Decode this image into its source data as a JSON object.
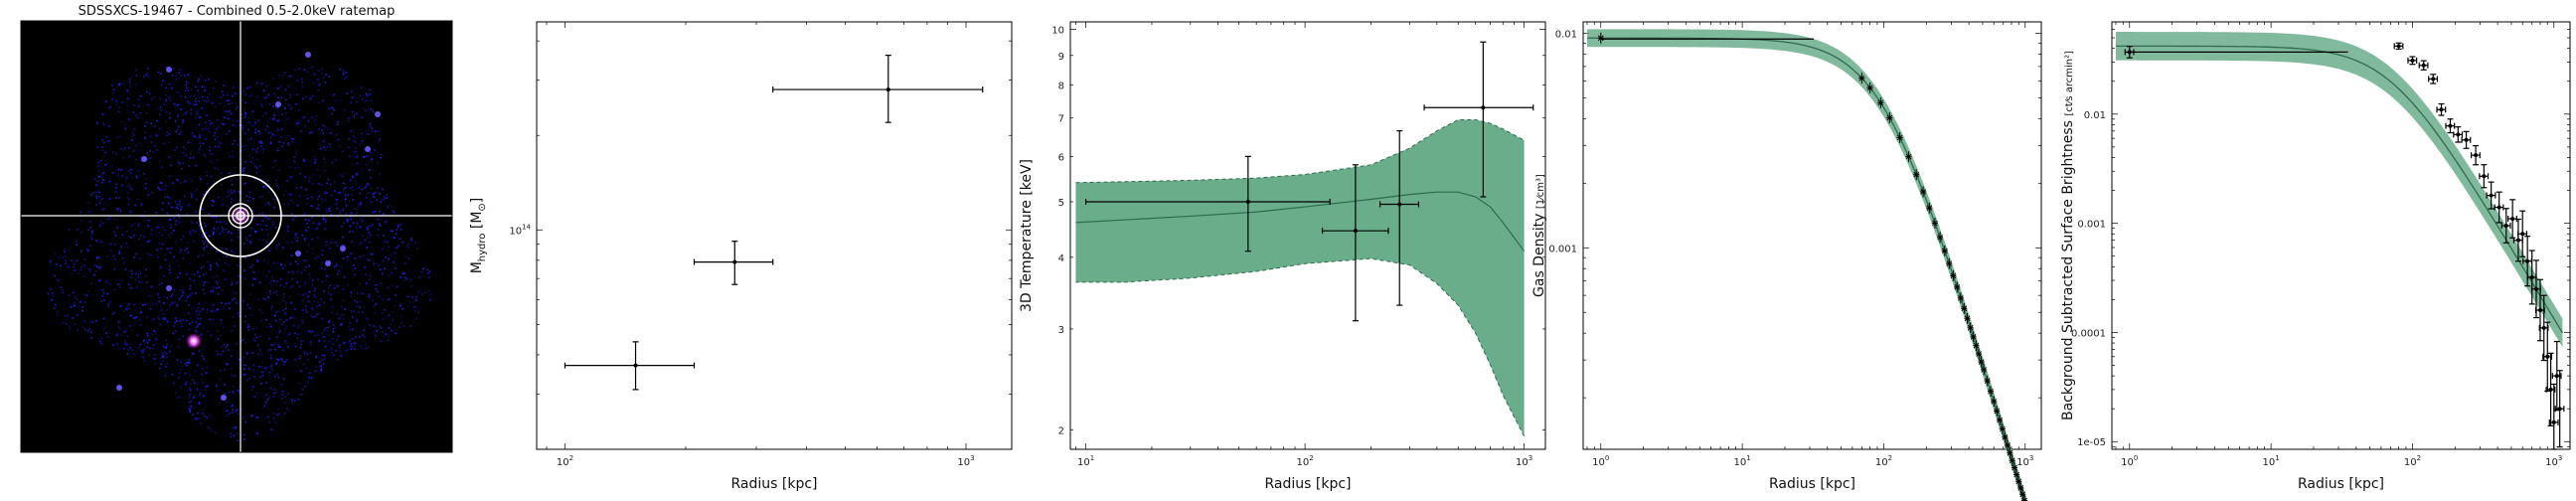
{
  "panel1": {
    "title": "SDSSXCS-19467 - Combined 0.5-2.0keV ratemap",
    "image_colors": {
      "background": "#000000",
      "noise": "#2222ff",
      "bright": "#ff66ff",
      "crosshair": "#ffffff"
    }
  },
  "chart_data": [
    {
      "type": "scatter",
      "xlabel": "Radius [kpc]",
      "ylabel": "M_hydro [M_⊙]",
      "ylabel_main": "M",
      "ylabel_sub": "hydro",
      "ylabel_bracket_open": " [M",
      "ylabel_sun_sub": "⊙",
      "ylabel_bracket_close": "]",
      "xscale": "log",
      "yscale": "log",
      "xlim": [
        85,
        1300
      ],
      "ylim": [
        20000000000000.0,
        460000000000000.0
      ],
      "xticks": [
        {
          "v": 100,
          "b": "10",
          "e": "2"
        },
        {
          "v": 1000,
          "b": "10",
          "e": "3"
        }
      ],
      "yticks": [
        {
          "v": 100000000000000.0,
          "b": "10",
          "e": "14"
        }
      ],
      "points": [
        {
          "x": 150,
          "xlo": 100,
          "xhi": 210,
          "y": 37000000000000.0,
          "ylo": 31000000000000.0,
          "yhi": 44000000000000.0
        },
        {
          "x": 265,
          "xlo": 210,
          "xhi": 330,
          "y": 79000000000000.0,
          "ylo": 67000000000000.0,
          "yhi": 92000000000000.0
        },
        {
          "x": 640,
          "xlo": 330,
          "xhi": 1100,
          "y": 280000000000000.0,
          "ylo": 220000000000000.0,
          "yhi": 360000000000000.0
        }
      ]
    },
    {
      "type": "scatter",
      "xlabel": "Radius [kpc]",
      "ylabel": "3D Temperature [keV]",
      "xscale": "log",
      "yscale": "log",
      "xlim": [
        8.5,
        1250
      ],
      "ylim": [
        1.85,
        10.3
      ],
      "xticks": [
        {
          "v": 10,
          "b": "10",
          "e": "1"
        },
        {
          "v": 100,
          "b": "10",
          "e": "2"
        },
        {
          "v": 1000,
          "b": "10",
          "e": "3"
        }
      ],
      "yticks": [
        {
          "v": 2,
          "t": "2"
        },
        {
          "v": 3,
          "t": "3"
        },
        {
          "v": 4,
          "t": "4"
        },
        {
          "v": 5,
          "t": "5"
        },
        {
          "v": 6,
          "t": "6"
        },
        {
          "v": 7,
          "t": "7"
        },
        {
          "v": 8,
          "t": "8"
        },
        {
          "v": 9,
          "t": "9"
        },
        {
          "v": 10,
          "t": "10"
        }
      ],
      "points": [
        {
          "x": 55,
          "xlo": 10,
          "xhi": 130,
          "y": 5.0,
          "ylo": 4.1,
          "yhi": 6.0
        },
        {
          "x": 170,
          "xlo": 120,
          "xhi": 240,
          "y": 4.45,
          "ylo": 3.1,
          "yhi": 5.8
        },
        {
          "x": 270,
          "xlo": 220,
          "xhi": 330,
          "y": 4.95,
          "ylo": 3.3,
          "yhi": 6.65
        },
        {
          "x": 650,
          "xlo": 350,
          "xhi": 1100,
          "y": 7.3,
          "ylo": 5.1,
          "yhi": 9.5
        }
      ],
      "model": {
        "x": [
          9,
          15,
          30,
          60,
          100,
          200,
          300,
          400,
          500,
          600,
          700,
          800,
          1000
        ],
        "y": [
          4.6,
          4.65,
          4.72,
          4.8,
          4.9,
          5.05,
          5.15,
          5.2,
          5.2,
          5.1,
          4.9,
          4.6,
          4.1
        ],
        "lower": [
          3.62,
          3.62,
          3.68,
          3.78,
          3.9,
          3.98,
          3.88,
          3.6,
          3.3,
          2.95,
          2.6,
          2.3,
          1.95
        ],
        "upper": [
          5.4,
          5.42,
          5.45,
          5.5,
          5.58,
          5.8,
          6.2,
          6.65,
          6.95,
          6.95,
          6.85,
          6.7,
          6.4
        ]
      },
      "band_color": "#6aad8a",
      "line_color": "#2e6b4f"
    },
    {
      "type": "scatter",
      "xlabel": "Radius [kpc]",
      "ylabel": "Gas Density [1/cm³]",
      "ylabel_main": "Gas Density ",
      "ylabel_num": "1",
      "ylabel_den": "cm³",
      "xscale": "log",
      "yscale": "log",
      "xlim": [
        0.75,
        1300
      ],
      "ylim": [
        0.000115,
        0.0113
      ],
      "xticks": [
        {
          "v": 1,
          "b": "10",
          "e": "0"
        },
        {
          "v": 10,
          "b": "10",
          "e": "1"
        },
        {
          "v": 100,
          "b": "10",
          "e": "2"
        },
        {
          "v": 1000,
          "b": "10",
          "e": "3"
        }
      ],
      "yticks": [
        {
          "v": 0.01,
          "t": "0.01"
        },
        {
          "v": 0.001,
          "t": "0.001"
        }
      ],
      "model": {
        "n0": 0.0095,
        "rc": 100,
        "beta": 0.72,
        "x_from": 0.8,
        "x_to": 1020
      },
      "points_x": [
        1.0,
        70,
        80,
        95,
        110,
        130,
        150,
        170,
        190,
        210,
        230,
        250,
        270,
        290,
        310,
        330,
        350,
        370,
        390,
        410,
        430,
        450,
        470,
        490,
        510,
        540,
        570,
        600,
        630,
        660,
        690,
        720,
        750,
        780,
        810,
        840,
        870,
        900,
        930,
        960,
        990,
        1010
      ],
      "flat_segment": {
        "x0": 1.0,
        "x1": 32,
        "y": 0.0094
      },
      "band_color": "#6aad8a",
      "line_color": "#2e6b4f"
    },
    {
      "type": "scatter",
      "xlabel": "Radius [kpc]",
      "ylabel": "Background Subtracted Surface Brightness [ct/(s arcmin²)]",
      "ylabel_main": "Background Subtracted Surface Brightness ",
      "ylabel_num": "ct",
      "ylabel_den": "s arcmin²",
      "xscale": "log",
      "yscale": "log",
      "xlim": [
        0.75,
        1300
      ],
      "ylim": [
        8.5e-06,
        0.07
      ],
      "xticks": [
        {
          "v": 1,
          "b": "10",
          "e": "0"
        },
        {
          "v": 10,
          "b": "10",
          "e": "1"
        },
        {
          "v": 100,
          "b": "10",
          "e": "2"
        },
        {
          "v": 1000,
          "b": "10",
          "e": "3"
        }
      ],
      "yticks": [
        {
          "v": 0.01,
          "t": "0.01"
        },
        {
          "v": 0.001,
          "t": "0.001"
        },
        {
          "v": 0.0001,
          "t": "0.0001"
        },
        {
          "v": 1e-05,
          "t": "1e-05"
        }
      ],
      "model": {
        "s0": 0.042,
        "rc": 70,
        "beta": 0.72,
        "x_from": 0.8,
        "x_to": 1150
      },
      "points": [
        {
          "x": 1.0,
          "y": 0.037,
          "yerr": 0.15
        },
        {
          "x": 80,
          "y": 0.042,
          "yerr": 0.08
        },
        {
          "x": 100,
          "y": 0.031,
          "yerr": 0.1
        },
        {
          "x": 120,
          "y": 0.028,
          "yerr": 0.12
        },
        {
          "x": 140,
          "y": 0.021,
          "yerr": 0.12
        },
        {
          "x": 160,
          "y": 0.011,
          "yerr": 0.15
        },
        {
          "x": 185,
          "y": 0.0078,
          "yerr": 0.18
        },
        {
          "x": 210,
          "y": 0.0065,
          "yerr": 0.2
        },
        {
          "x": 240,
          "y": 0.0058,
          "yerr": 0.22
        },
        {
          "x": 280,
          "y": 0.0042,
          "yerr": 0.25
        },
        {
          "x": 320,
          "y": 0.0027,
          "yerr": 0.3
        },
        {
          "x": 360,
          "y": 0.0018,
          "yerr": 0.35
        },
        {
          "x": 410,
          "y": 0.0014,
          "yerr": 0.4
        },
        {
          "x": 460,
          "y": 0.00095,
          "yerr": 0.45
        },
        {
          "x": 510,
          "y": 0.0011,
          "yerr": 0.5
        },
        {
          "x": 560,
          "y": 0.0007,
          "yerr": 0.55
        },
        {
          "x": 600,
          "y": 0.0008,
          "yerr": 0.6
        },
        {
          "x": 650,
          "y": 0.00045,
          "yerr": 0.65
        },
        {
          "x": 700,
          "y": 0.00032,
          "yerr": 0.7
        },
        {
          "x": 750,
          "y": 0.00025,
          "yerr": 0.75
        },
        {
          "x": 800,
          "y": 0.00016,
          "yerr": 0.8
        },
        {
          "x": 850,
          "y": 0.00011,
          "yerr": 0.85
        },
        {
          "x": 900,
          "y": 6e-05,
          "yerr": 0.9
        },
        {
          "x": 950,
          "y": 3e-05,
          "yerr": 0.95
        },
        {
          "x": 1000,
          "y": 1.5e-05,
          "yerr": 1.0
        },
        {
          "x": 1050,
          "y": 4e-05,
          "yerr": 0.9
        },
        {
          "x": 1100,
          "y": 2e-05,
          "yerr": 1.0
        }
      ],
      "flat_segment": {
        "x0": 1.0,
        "x1": 35,
        "y": 0.037
      },
      "band_color": "#6aad8a",
      "line_color": "#2e6b4f"
    }
  ]
}
